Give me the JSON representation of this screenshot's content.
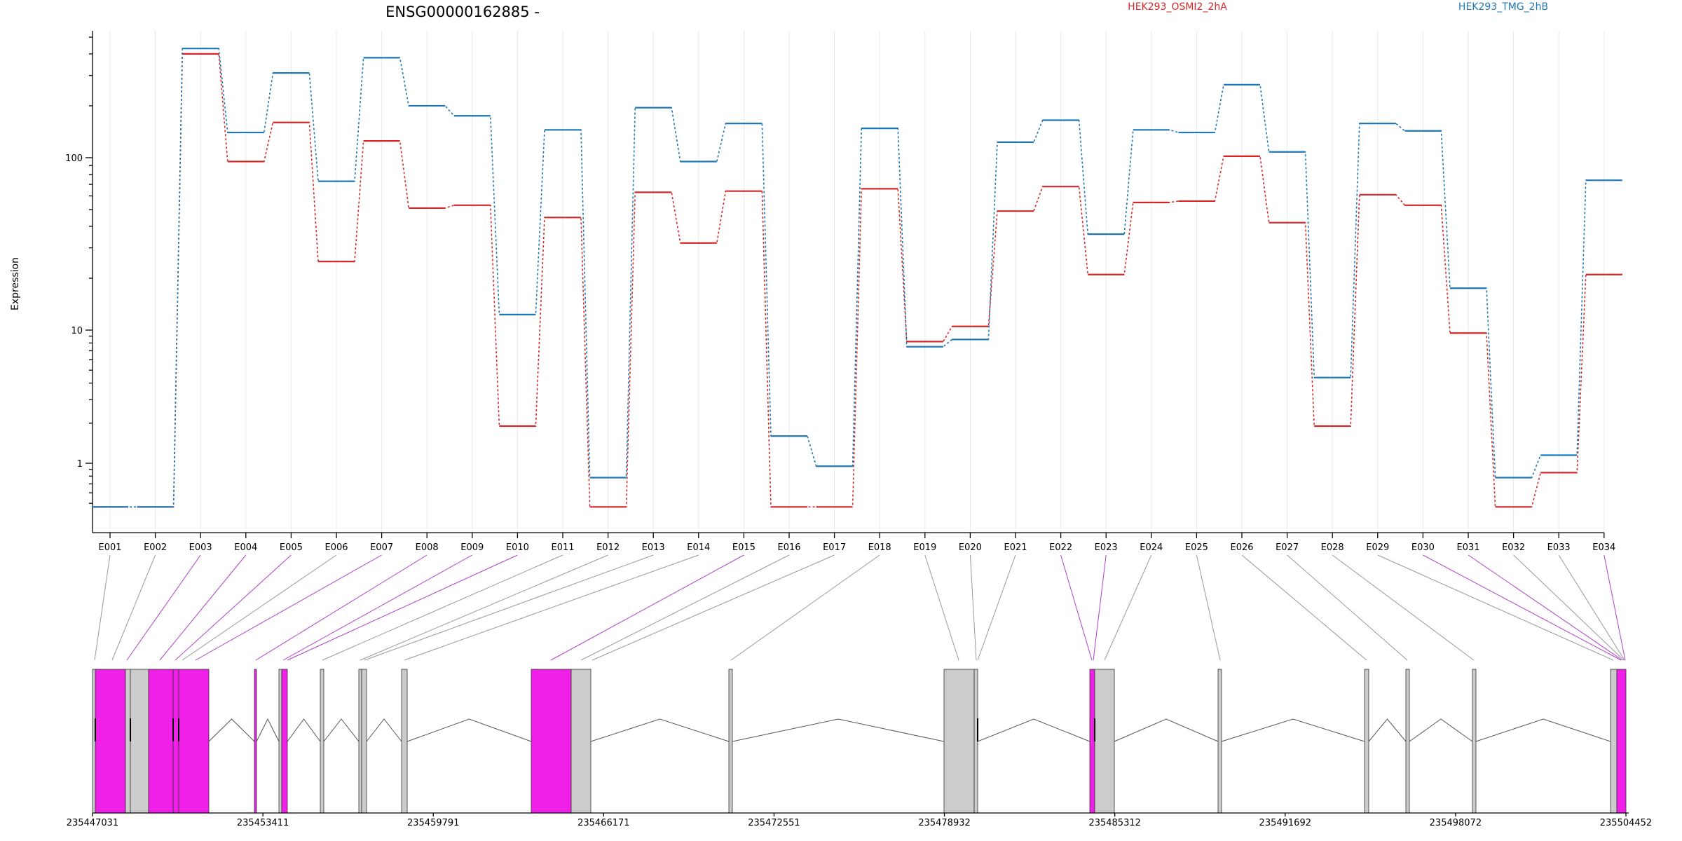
{
  "chart_data": {
    "type": "line",
    "title": "ENSG00000162885 -",
    "ylabel": "Expression",
    "yscale": "log",
    "yticks": [
      "1",
      "10",
      "100"
    ],
    "categories": [
      "E001",
      "E002",
      "E003",
      "E004",
      "E005",
      "E006",
      "E007",
      "E008",
      "E009",
      "E010",
      "E011",
      "E012",
      "E013",
      "E014",
      "E015",
      "E016",
      "E017",
      "E018",
      "E019",
      "E020",
      "E021",
      "E022",
      "E023",
      "E024",
      "E025",
      "E026",
      "E027",
      "E028",
      "E029",
      "E030",
      "E031",
      "E032",
      "E033",
      "E034"
    ],
    "series": [
      {
        "name": "HEK293_OSMI2_2hA",
        "color": "#d62728",
        "values": [
          0.47,
          0.47,
          400,
          95,
          160,
          25,
          125,
          51,
          53,
          1.9,
          45,
          0.47,
          63,
          32,
          64,
          0.47,
          0.47,
          66,
          8.2,
          10.5,
          49,
          68,
          21,
          55,
          56,
          102,
          42,
          1.9,
          61,
          53,
          9.5,
          0.47,
          0.85,
          21
        ]
      },
      {
        "name": "HEK293_TMG_2hB",
        "color": "#1f77b4",
        "values": [
          0.47,
          0.47,
          430,
          140,
          310,
          73,
          380,
          200,
          175,
          12.3,
          145,
          0.78,
          195,
          95,
          158,
          1.6,
          0.95,
          148,
          7.5,
          8.5,
          123,
          165,
          36,
          145,
          140,
          265,
          108,
          4.4,
          158,
          143,
          17.5,
          0.78,
          1.15,
          74
        ]
      }
    ],
    "gene_model": {
      "coordinate_labels": [
        "235447031",
        "235453411",
        "235459791",
        "235466171",
        "235472551",
        "235478932",
        "235485312",
        "235491692",
        "235498072",
        "235504452"
      ]
    }
  }
}
